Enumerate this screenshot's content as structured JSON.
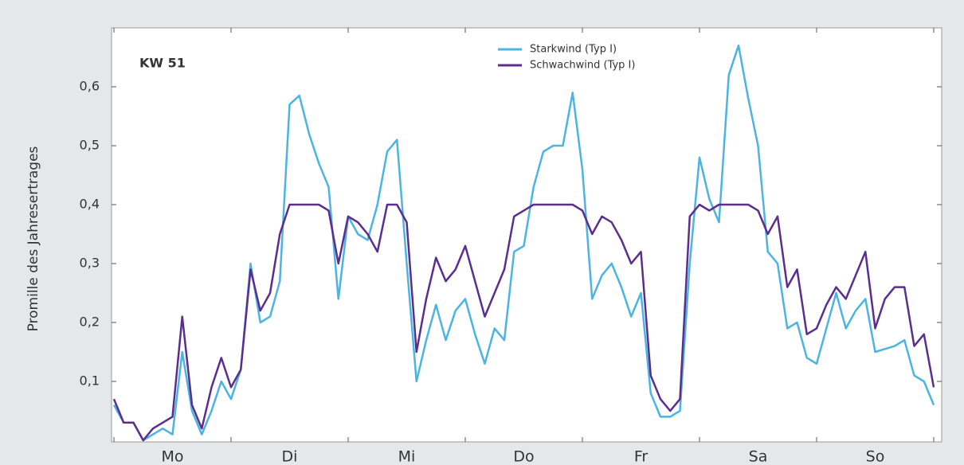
{
  "chart_data": {
    "type": "line",
    "title": "KW 51",
    "y_label": "Promille des Jahresertrages",
    "categories": [
      "Mo",
      "Di",
      "Mi",
      "Do",
      "Fr",
      "Sa",
      "So"
    ],
    "x": [
      0,
      2,
      4,
      6,
      8,
      10,
      12,
      14,
      16,
      18,
      20,
      22,
      24,
      26,
      28,
      30,
      32,
      34,
      36,
      38,
      40,
      42,
      44,
      46,
      48,
      50,
      52,
      54,
      56,
      58,
      60,
      62,
      64,
      66,
      68,
      70,
      72,
      74,
      76,
      78,
      80,
      82,
      84,
      86,
      88,
      90,
      92,
      94,
      96,
      98,
      100,
      102,
      104,
      106,
      108,
      110,
      112,
      114,
      116,
      118,
      120,
      122,
      124,
      126,
      128,
      130,
      132,
      134,
      136,
      138,
      140,
      142,
      144,
      146,
      148,
      150,
      152,
      154,
      156,
      158,
      160,
      162,
      164,
      166,
      168
    ],
    "xlim": [
      0,
      168
    ],
    "xticks": [
      0,
      24,
      48,
      72,
      96,
      120,
      144,
      168
    ],
    "ylim": [
      0,
      0.7
    ],
    "yticks": [
      {
        "value": 0.1,
        "label": "0,1"
      },
      {
        "value": 0.2,
        "label": "0,2"
      },
      {
        "value": 0.3,
        "label": "0,3"
      },
      {
        "value": 0.4,
        "label": "0,4"
      },
      {
        "value": 0.5,
        "label": "0,5"
      },
      {
        "value": 0.6,
        "label": "0,6"
      }
    ],
    "grid": false,
    "series": [
      {
        "name": "Starkwind (Typ I)",
        "color": "#4cb4e3",
        "values": [
          0.06,
          0.03,
          0.03,
          0.0,
          0.01,
          0.02,
          0.01,
          0.15,
          0.05,
          0.01,
          0.05,
          0.1,
          0.07,
          0.12,
          0.3,
          0.2,
          0.21,
          0.27,
          0.57,
          0.585,
          0.52,
          0.47,
          0.43,
          0.24,
          0.38,
          0.35,
          0.34,
          0.4,
          0.49,
          0.51,
          0.3,
          0.1,
          0.17,
          0.23,
          0.17,
          0.22,
          0.24,
          0.18,
          0.13,
          0.19,
          0.17,
          0.32,
          0.33,
          0.43,
          0.49,
          0.5,
          0.5,
          0.59,
          0.46,
          0.24,
          0.28,
          0.3,
          0.26,
          0.21,
          0.25,
          0.08,
          0.04,
          0.04,
          0.05,
          0.3,
          0.48,
          0.41,
          0.37,
          0.62,
          0.67,
          0.58,
          0.5,
          0.32,
          0.3,
          0.19,
          0.2,
          0.14,
          0.13,
          0.19,
          0.25,
          0.19,
          0.22,
          0.24,
          0.15,
          0.155,
          0.16,
          0.17,
          0.11,
          0.1,
          0.06
        ]
      },
      {
        "name": "Schwachwind (Typ I)",
        "color": "#5b2d8e",
        "values": [
          0.07,
          0.03,
          0.03,
          0.0,
          0.02,
          0.03,
          0.04,
          0.21,
          0.06,
          0.02,
          0.09,
          0.14,
          0.09,
          0.12,
          0.29,
          0.22,
          0.25,
          0.35,
          0.4,
          0.4,
          0.4,
          0.4,
          0.39,
          0.3,
          0.38,
          0.37,
          0.35,
          0.32,
          0.4,
          0.4,
          0.37,
          0.15,
          0.24,
          0.31,
          0.27,
          0.29,
          0.33,
          0.27,
          0.21,
          0.25,
          0.29,
          0.38,
          0.39,
          0.4,
          0.4,
          0.4,
          0.4,
          0.4,
          0.39,
          0.35,
          0.38,
          0.37,
          0.34,
          0.3,
          0.32,
          0.11,
          0.07,
          0.05,
          0.07,
          0.38,
          0.4,
          0.39,
          0.4,
          0.4,
          0.4,
          0.4,
          0.39,
          0.35,
          0.38,
          0.26,
          0.29,
          0.18,
          0.19,
          0.23,
          0.26,
          0.24,
          0.28,
          0.32,
          0.19,
          0.24,
          0.26,
          0.26,
          0.16,
          0.18,
          0.09
        ]
      }
    ]
  }
}
